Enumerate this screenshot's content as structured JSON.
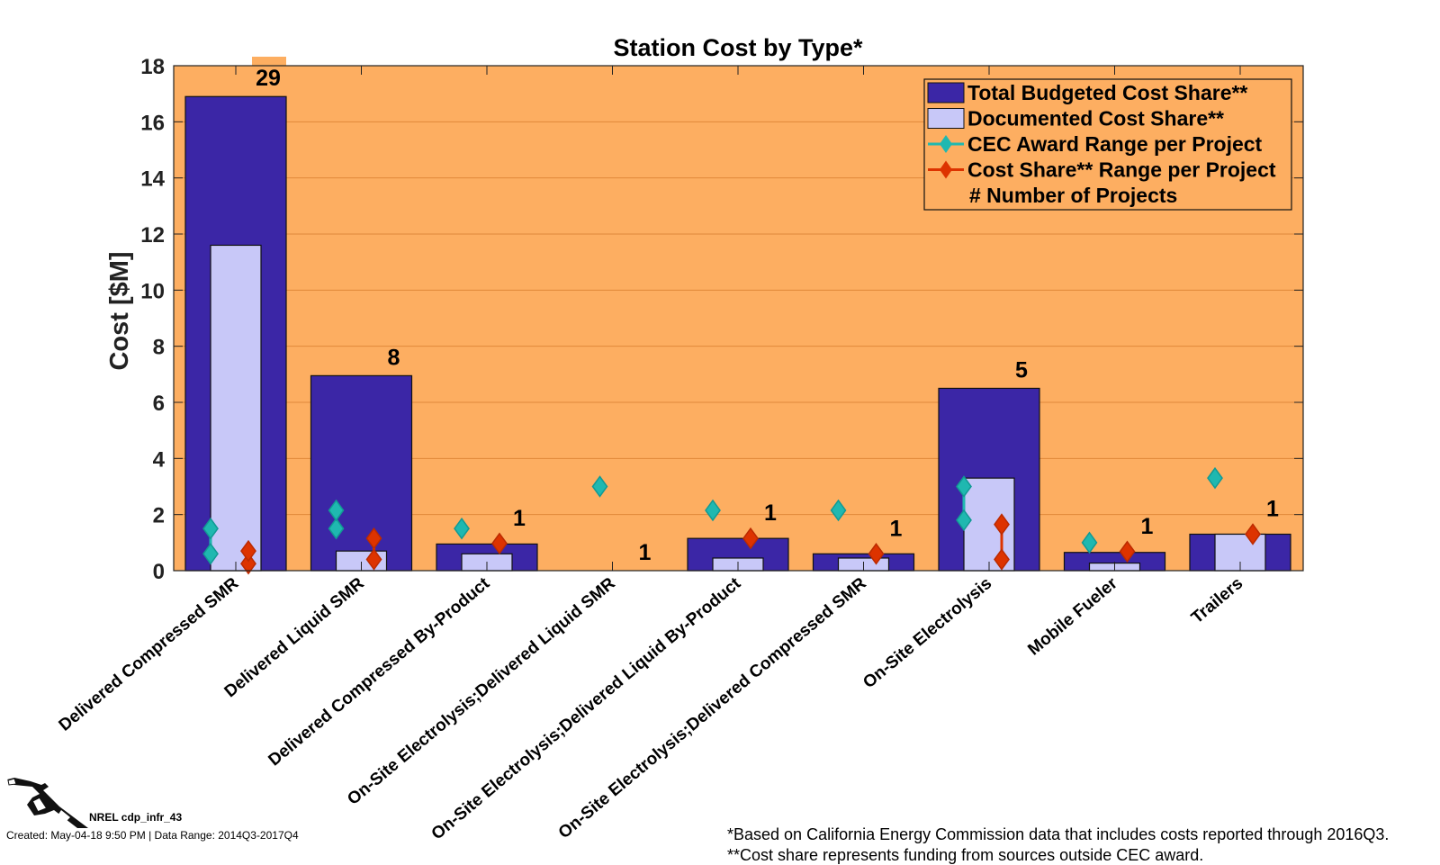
{
  "chart_data": {
    "type": "bar",
    "title": "Station Cost by Type*",
    "xlabel": "",
    "ylabel": "Cost [$M]",
    "ylim": [
      0,
      18
    ],
    "yticks": [
      0,
      2,
      4,
      6,
      8,
      10,
      12,
      14,
      16,
      18
    ],
    "grid": true,
    "legend_position": "top-right",
    "categories": [
      "Delivered Compressed SMR",
      "Delivered Liquid SMR",
      "Delivered Compressed By-Product",
      "On-Site Electrolysis;Delivered Liquid SMR",
      "On-Site Electrolysis;Delivered Liquid By-Product",
      "On-Site Electrolysis;Delivered Compressed SMR",
      "On-Site Electrolysis",
      "Mobile Fueler",
      "Trailers"
    ],
    "series": [
      {
        "name": "Total Budgeted Cost Share**",
        "kind": "bar",
        "color": "#3b26a6",
        "values": [
          16.9,
          6.95,
          0.95,
          0,
          1.15,
          0.6,
          6.5,
          0.65,
          1.3
        ]
      },
      {
        "name": "Documented Cost Share**",
        "kind": "bar",
        "color": "#c8c8f8",
        "values": [
          11.6,
          0.7,
          0.6,
          0,
          0.45,
          0.45,
          3.3,
          0.27,
          1.3
        ]
      },
      {
        "name": "CEC Award Range per Project",
        "kind": "range",
        "color": "#1fb8b0",
        "min": [
          0.6,
          1.5,
          1.5,
          3.0,
          2.15,
          2.15,
          1.8,
          1.0,
          3.3
        ],
        "max": [
          1.5,
          2.15,
          1.5,
          3.0,
          2.15,
          2.15,
          3.0,
          1.0,
          3.3
        ]
      },
      {
        "name": "Cost Share** Range per Project",
        "kind": "range",
        "color": "#dd3300",
        "min": [
          0.25,
          0.4,
          0.97,
          null,
          1.15,
          0.6,
          0.4,
          0.68,
          1.3
        ],
        "max": [
          0.7,
          1.15,
          0.97,
          null,
          1.15,
          0.6,
          1.65,
          0.68,
          1.3
        ]
      }
    ],
    "project_counts": [
      29,
      8,
      1,
      1,
      1,
      1,
      5,
      1,
      1
    ],
    "legend": [
      "Total Budgeted Cost Share**",
      "Documented Cost Share**",
      "CEC Award Range per Project",
      "Cost Share** Range per Project",
      "#  Number of Projects"
    ],
    "plot_background": "#fdae61"
  },
  "footer": {
    "id": "NREL cdp_infr_43",
    "created": "Created: May-04-18  9:50 PM | Data Range: 2014Q3-2017Q4",
    "note1": "*Based on California Energy Commission data that includes costs reported through 2016Q3.",
    "note2": "**Cost share represents funding from sources outside CEC award."
  },
  "icons": {
    "logo": "fuel-nozzle-icon"
  }
}
